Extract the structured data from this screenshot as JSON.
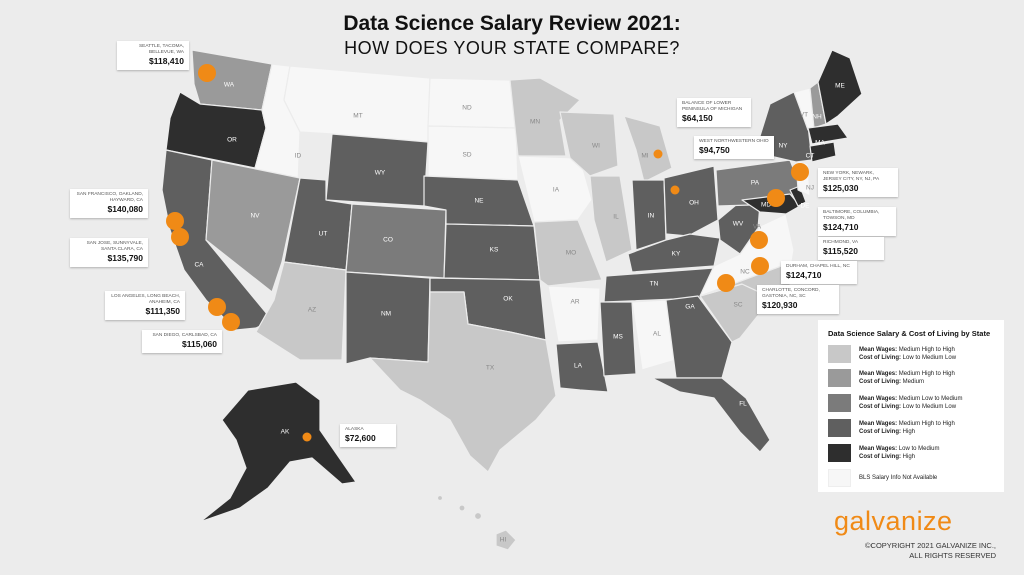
{
  "title": "Data Science Salary Review 2021:",
  "subtitle": "HOW  DOES YOUR STATE COMPARE?",
  "colors": {
    "background": "#ececec",
    "tier1": "#c8c8c8",
    "tier2": "#9a9a9a",
    "tier3": "#7b7b7b",
    "tier4": "#5f5f5f",
    "tier5": "#2e2e2e",
    "na": "#f7f7f7",
    "accent": "#f08a16"
  },
  "state_labels": [
    "WA",
    "OR",
    "ID",
    "MT",
    "ND",
    "SD",
    "WY",
    "NV",
    "CA",
    "UT",
    "CO",
    "AZ",
    "NM",
    "NE",
    "KS",
    "OK",
    "TX",
    "MN",
    "IA",
    "MO",
    "AR",
    "LA",
    "WI",
    "IL",
    "MI",
    "IN",
    "OH",
    "KY",
    "TN",
    "MS",
    "AL",
    "GA",
    "FL",
    "SC",
    "NC",
    "VA",
    "WV",
    "PA",
    "NY",
    "VT",
    "NH",
    "ME",
    "MA",
    "CT",
    "NJ",
    "DE",
    "MD",
    "AK",
    "HI"
  ],
  "callouts": {
    "seattle": {
      "location": "SEATTLE, TACOMA, BELLEVUE, WA",
      "salary": "$118,410"
    },
    "sf": {
      "location": "SAN FRANCISCO, OAKLAND, HAYWARD, CA",
      "salary": "$140,080"
    },
    "sj": {
      "location": "SAN JOSE, SUNNYVALE, SANTA CLARA, CA",
      "salary": "$135,790"
    },
    "la": {
      "location": "LOS ANGELES, LONG BEACH, ANAHEIM, CA",
      "salary": "$111,350"
    },
    "sd": {
      "location": "SAN DIEGO, CARLSBAD, CA",
      "salary": "$115,060"
    },
    "mi_lower": {
      "location": "BALANCE OF LOWER PENINSULA OF MICHIGAN",
      "salary": "$64,150"
    },
    "oh_nw": {
      "location": "WEST NORTHWESTERN OHIO",
      "salary": "$94,750"
    },
    "nyc": {
      "location": "NEW YORK, NEWARK, JERSEY CITY, NY, NJ, PA",
      "salary": "$125,030"
    },
    "baltimore": {
      "location": "BALTIMORE, COLUMBIA, TOWSON, MD",
      "salary": "$124,710"
    },
    "richmond": {
      "location": "RICHMOND, VA",
      "salary": "$115,520"
    },
    "durham": {
      "location": "DURHAM, CHAPEL HILL, NC",
      "salary": "$124,710"
    },
    "charlotte": {
      "location": "CHARLOTTE, CONCORD, GASTONIA, NC, SC",
      "salary": "$120,930"
    },
    "alaska": {
      "location": "ALASKA",
      "salary": "$72,600"
    }
  },
  "legend": {
    "title": "Data Science Salary & Cost of Living by State",
    "wage_prefix": "Mean Wages:",
    "col_prefix": "Cost of Living:",
    "items": [
      {
        "wage": "Medium High to High",
        "col": "Low to Medium Low",
        "color": "#c8c8c8"
      },
      {
        "wage": "Medium High to High",
        "col": "Medium",
        "color": "#9a9a9a"
      },
      {
        "wage": "Medium Low to Medium",
        "col": "Low to Medium Low",
        "color": "#7b7b7b"
      },
      {
        "wage": "Medium High to High",
        "col": "High",
        "color": "#5f5f5f"
      },
      {
        "wage": "Low to Medium",
        "col": "High",
        "color": "#2e2e2e"
      }
    ],
    "na_label": "BLS Salary Info Not Available",
    "na_color": "#f7f7f7"
  },
  "logo": "galvanize",
  "copyright": [
    "©COPYRIGHT 2021 GALVANIZE INC.,",
    "ALL RIGHTS RESERVED"
  ]
}
